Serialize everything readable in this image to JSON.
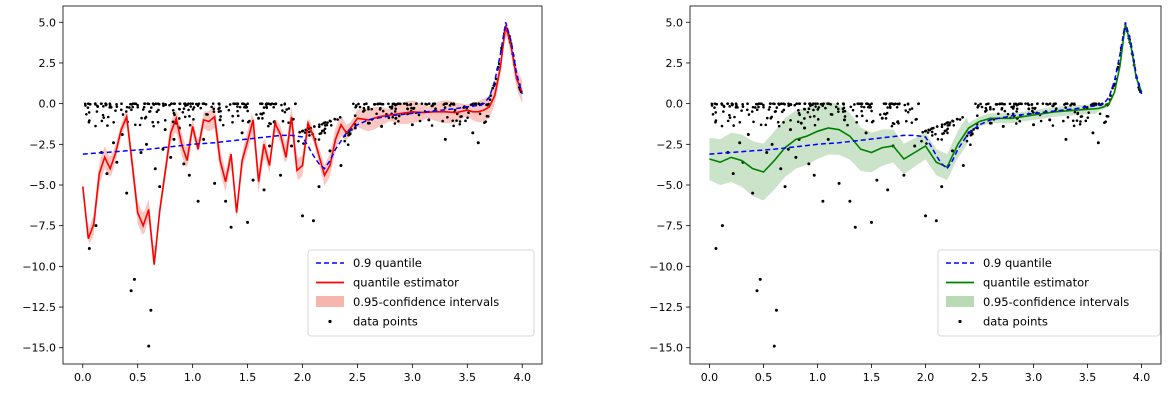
{
  "chart_data": [
    {
      "type": "line",
      "title": "",
      "xlabel": "",
      "ylabel": "",
      "xlim": [
        -0.18,
        4.18
      ],
      "ylim": [
        -16.0,
        6.0
      ],
      "x_ticks": [
        "0.0",
        "0.5",
        "1.0",
        "1.5",
        "2.0",
        "2.5",
        "3.0",
        "3.5",
        "4.0"
      ],
      "y_ticks": [
        "5.0",
        "2.5",
        "0.0",
        "−2.5",
        "−5.0",
        "−7.5",
        "−10.0",
        "−12.5",
        "−15.0"
      ],
      "grid": false,
      "legend_position": "lower right",
      "legend": [
        {
          "label": "0.9 quantile",
          "style": "dashed-line",
          "color": "#0000ff"
        },
        {
          "label": "quantile estimator",
          "style": "line",
          "color": "#ff0000"
        },
        {
          "label": " 0.95-confidence intervals",
          "style": "band",
          "color": "#f7b6ad"
        },
        {
          "label": "data points",
          "style": "dot",
          "color": "#000000"
        }
      ],
      "series": [
        {
          "name": "0.9 quantile",
          "color": "#0000ff",
          "x": [
            0.0,
            0.2,
            0.4,
            0.6,
            0.8,
            1.0,
            1.2,
            1.4,
            1.6,
            1.8,
            1.9,
            2.0,
            2.05,
            2.1,
            2.15,
            2.2,
            2.25,
            2.3,
            2.4,
            2.5,
            2.6,
            2.8,
            3.0,
            3.2,
            3.4,
            3.5,
            3.6,
            3.65,
            3.7,
            3.75,
            3.8,
            3.85,
            3.9,
            3.95,
            4.0
          ],
          "y": [
            -3.1,
            -3.0,
            -2.9,
            -2.8,
            -2.65,
            -2.5,
            -2.4,
            -2.25,
            -2.1,
            -1.95,
            -1.95,
            -2.05,
            -2.6,
            -3.2,
            -3.7,
            -4.0,
            -3.5,
            -2.8,
            -1.8,
            -1.3,
            -1.0,
            -0.75,
            -0.6,
            -0.45,
            -0.3,
            -0.2,
            -0.1,
            0.0,
            0.4,
            1.4,
            3.0,
            5.0,
            3.8,
            1.8,
            0.6
          ]
        },
        {
          "name": "quantile estimator",
          "color": "#ff0000",
          "x": [
            0.0,
            0.05,
            0.1,
            0.15,
            0.2,
            0.25,
            0.3,
            0.35,
            0.4,
            0.45,
            0.5,
            0.55,
            0.6,
            0.65,
            0.7,
            0.75,
            0.8,
            0.85,
            0.9,
            0.95,
            1.0,
            1.05,
            1.1,
            1.15,
            1.2,
            1.25,
            1.3,
            1.35,
            1.4,
            1.45,
            1.5,
            1.55,
            1.6,
            1.65,
            1.7,
            1.75,
            1.8,
            1.85,
            1.9,
            1.95,
            2.0,
            2.05,
            2.1,
            2.15,
            2.2,
            2.25,
            2.3,
            2.35,
            2.4,
            2.45,
            2.5,
            2.6,
            2.7,
            2.8,
            2.9,
            3.0,
            3.1,
            3.2,
            3.3,
            3.4,
            3.5,
            3.55,
            3.6,
            3.65,
            3.7,
            3.75,
            3.8,
            3.85,
            3.9,
            3.95,
            4.0
          ],
          "y": [
            -5.1,
            -8.3,
            -7.4,
            -4.3,
            -3.3,
            -4.0,
            -3.0,
            -1.6,
            -0.8,
            -3.7,
            -6.7,
            -7.5,
            -6.5,
            -9.9,
            -6.6,
            -4.2,
            -1.8,
            -0.9,
            -2.5,
            -3.5,
            -1.4,
            -2.8,
            -1.0,
            -1.1,
            -0.8,
            -3.5,
            -4.8,
            -3.1,
            -6.7,
            -3.5,
            -2.3,
            -1.0,
            -4.8,
            -2.5,
            -3.8,
            -1.2,
            -1.9,
            -3.3,
            -0.8,
            -4.1,
            -3.8,
            -1.2,
            -2.0,
            -3.2,
            -4.4,
            -3.8,
            -2.2,
            -1.3,
            -1.8,
            -1.4,
            -0.9,
            -1.0,
            -0.8,
            -0.7,
            -0.6,
            -0.5,
            -0.55,
            -0.5,
            -0.5,
            -0.55,
            -0.4,
            -0.5,
            -0.5,
            -0.4,
            -0.2,
            0.5,
            2.2,
            4.8,
            3.5,
            1.5,
            0.7
          ]
        }
      ],
      "points": {
        "name": "data points",
        "x": [
          0.06,
          0.12,
          0.17,
          0.22,
          0.28,
          0.31,
          0.36,
          0.4,
          0.44,
          0.47,
          0.53,
          0.58,
          0.6,
          0.62,
          0.66,
          0.7,
          0.73,
          0.75,
          0.8,
          0.83,
          0.85,
          0.88,
          0.92,
          0.97,
          1.05,
          1.1,
          1.2,
          1.25,
          1.3,
          1.35,
          1.45,
          1.5,
          1.55,
          1.6,
          1.65,
          1.7,
          1.8,
          1.9,
          2.0,
          2.1,
          2.15,
          2.25,
          2.35,
          2.48,
          2.6,
          2.72,
          2.85,
          3.0,
          3.15,
          3.3,
          3.55,
          3.6
        ],
        "y": [
          -8.9,
          -7.5,
          -3.0,
          -4.3,
          -2.4,
          -3.6,
          -1.9,
          -5.5,
          -11.5,
          -10.8,
          -3.0,
          -2.5,
          -14.9,
          -12.7,
          -4.0,
          -5.1,
          -2.8,
          -1.6,
          -3.3,
          -2.2,
          -1.2,
          -1.5,
          -3.7,
          -4.4,
          -6.0,
          -2.2,
          -4.9,
          -1.0,
          -6.0,
          -7.6,
          -1.8,
          -7.3,
          -4.7,
          -0.9,
          -5.3,
          -2.6,
          -4.4,
          -2.6,
          -6.9,
          -7.2,
          -5.1,
          -2.9,
          -3.8,
          -1.5,
          -1.2,
          -1.4,
          -0.9,
          -1.3,
          -1.0,
          -2.2,
          -1.8,
          -2.4
        ]
      }
    },
    {
      "type": "line",
      "title": "",
      "xlabel": "",
      "ylabel": "",
      "xlim": [
        -0.18,
        4.18
      ],
      "ylim": [
        -16.0,
        6.0
      ],
      "x_ticks": [
        "0.0",
        "0.5",
        "1.0",
        "1.5",
        "2.0",
        "2.5",
        "3.0",
        "3.5",
        "4.0"
      ],
      "y_ticks": [
        "5.0",
        "2.5",
        "0.0",
        "−2.5",
        "−5.0",
        "−7.5",
        "−10.0",
        "−12.5",
        "−15.0"
      ],
      "grid": false,
      "legend_position": "lower right",
      "legend": [
        {
          "label": "0.9 quantile",
          "style": "dashed-line",
          "color": "#0000ff"
        },
        {
          "label": "quantile estimator",
          "style": "line",
          "color": "#008000"
        },
        {
          "label": "0.95-confidence intervals",
          "style": "band",
          "color": "#b9dab5"
        },
        {
          "label": "data points",
          "style": "dot",
          "color": "#000000"
        }
      ],
      "series": [
        {
          "name": "0.9 quantile",
          "color": "#0000ff",
          "x": [
            0.0,
            0.2,
            0.4,
            0.6,
            0.8,
            1.0,
            1.2,
            1.4,
            1.6,
            1.8,
            1.9,
            2.0,
            2.05,
            2.1,
            2.15,
            2.2,
            2.25,
            2.3,
            2.4,
            2.5,
            2.6,
            2.8,
            3.0,
            3.2,
            3.4,
            3.5,
            3.6,
            3.65,
            3.7,
            3.75,
            3.8,
            3.85,
            3.9,
            3.95,
            4.0
          ],
          "y": [
            -3.1,
            -3.0,
            -2.9,
            -2.8,
            -2.65,
            -2.5,
            -2.4,
            -2.25,
            -2.1,
            -1.95,
            -1.95,
            -2.05,
            -2.6,
            -3.2,
            -3.7,
            -4.0,
            -3.5,
            -2.8,
            -1.8,
            -1.3,
            -1.0,
            -0.75,
            -0.6,
            -0.45,
            -0.3,
            -0.2,
            -0.1,
            0.0,
            0.4,
            1.4,
            3.0,
            5.0,
            3.8,
            1.8,
            0.6
          ]
        },
        {
          "name": "quantile estimator",
          "color": "#008000",
          "x": [
            0.0,
            0.1,
            0.2,
            0.3,
            0.4,
            0.5,
            0.6,
            0.7,
            0.8,
            0.9,
            1.0,
            1.1,
            1.2,
            1.3,
            1.4,
            1.5,
            1.6,
            1.7,
            1.8,
            1.9,
            2.0,
            2.1,
            2.2,
            2.3,
            2.4,
            2.5,
            2.6,
            2.8,
            3.0,
            3.2,
            3.4,
            3.5,
            3.6,
            3.65,
            3.7,
            3.75,
            3.8,
            3.85,
            3.9,
            3.95,
            4.0
          ],
          "y": [
            -3.4,
            -3.6,
            -3.3,
            -3.5,
            -4.0,
            -4.2,
            -3.5,
            -2.7,
            -2.2,
            -2.0,
            -1.7,
            -1.5,
            -1.6,
            -2.0,
            -2.8,
            -3.0,
            -2.7,
            -2.6,
            -3.4,
            -3.0,
            -2.6,
            -3.6,
            -3.9,
            -2.5,
            -1.5,
            -1.1,
            -0.9,
            -0.9,
            -0.7,
            -0.5,
            -0.4,
            -0.35,
            -0.3,
            -0.2,
            0.0,
            0.7,
            2.3,
            4.9,
            3.6,
            1.6,
            0.7
          ]
        }
      ],
      "points": {
        "name": "data points",
        "x": [
          0.06,
          0.12,
          0.17,
          0.22,
          0.28,
          0.31,
          0.36,
          0.4,
          0.44,
          0.47,
          0.53,
          0.58,
          0.6,
          0.62,
          0.66,
          0.7,
          0.73,
          0.75,
          0.8,
          0.83,
          0.85,
          0.88,
          0.92,
          0.97,
          1.05,
          1.1,
          1.2,
          1.25,
          1.3,
          1.35,
          1.45,
          1.5,
          1.55,
          1.6,
          1.65,
          1.7,
          1.8,
          1.9,
          2.0,
          2.1,
          2.15,
          2.25,
          2.35,
          2.48,
          2.6,
          2.72,
          2.85,
          3.0,
          3.15,
          3.3,
          3.55,
          3.6
        ],
        "y": [
          -8.9,
          -7.5,
          -3.0,
          -4.3,
          -2.4,
          -3.6,
          -1.9,
          -5.5,
          -11.5,
          -10.8,
          -3.0,
          -2.5,
          -14.9,
          -12.7,
          -4.0,
          -5.1,
          -2.8,
          -1.6,
          -3.3,
          -2.2,
          -1.2,
          -1.5,
          -3.7,
          -4.4,
          -6.0,
          -2.2,
          -4.9,
          -1.0,
          -6.0,
          -7.6,
          -1.8,
          -7.3,
          -4.7,
          -0.9,
          -5.3,
          -2.6,
          -4.4,
          -2.6,
          -6.9,
          -7.2,
          -5.1,
          -2.9,
          -3.8,
          -1.5,
          -1.2,
          -1.4,
          -0.9,
          -1.3,
          -1.0,
          -2.2,
          -1.8,
          -2.4
        ]
      }
    }
  ]
}
